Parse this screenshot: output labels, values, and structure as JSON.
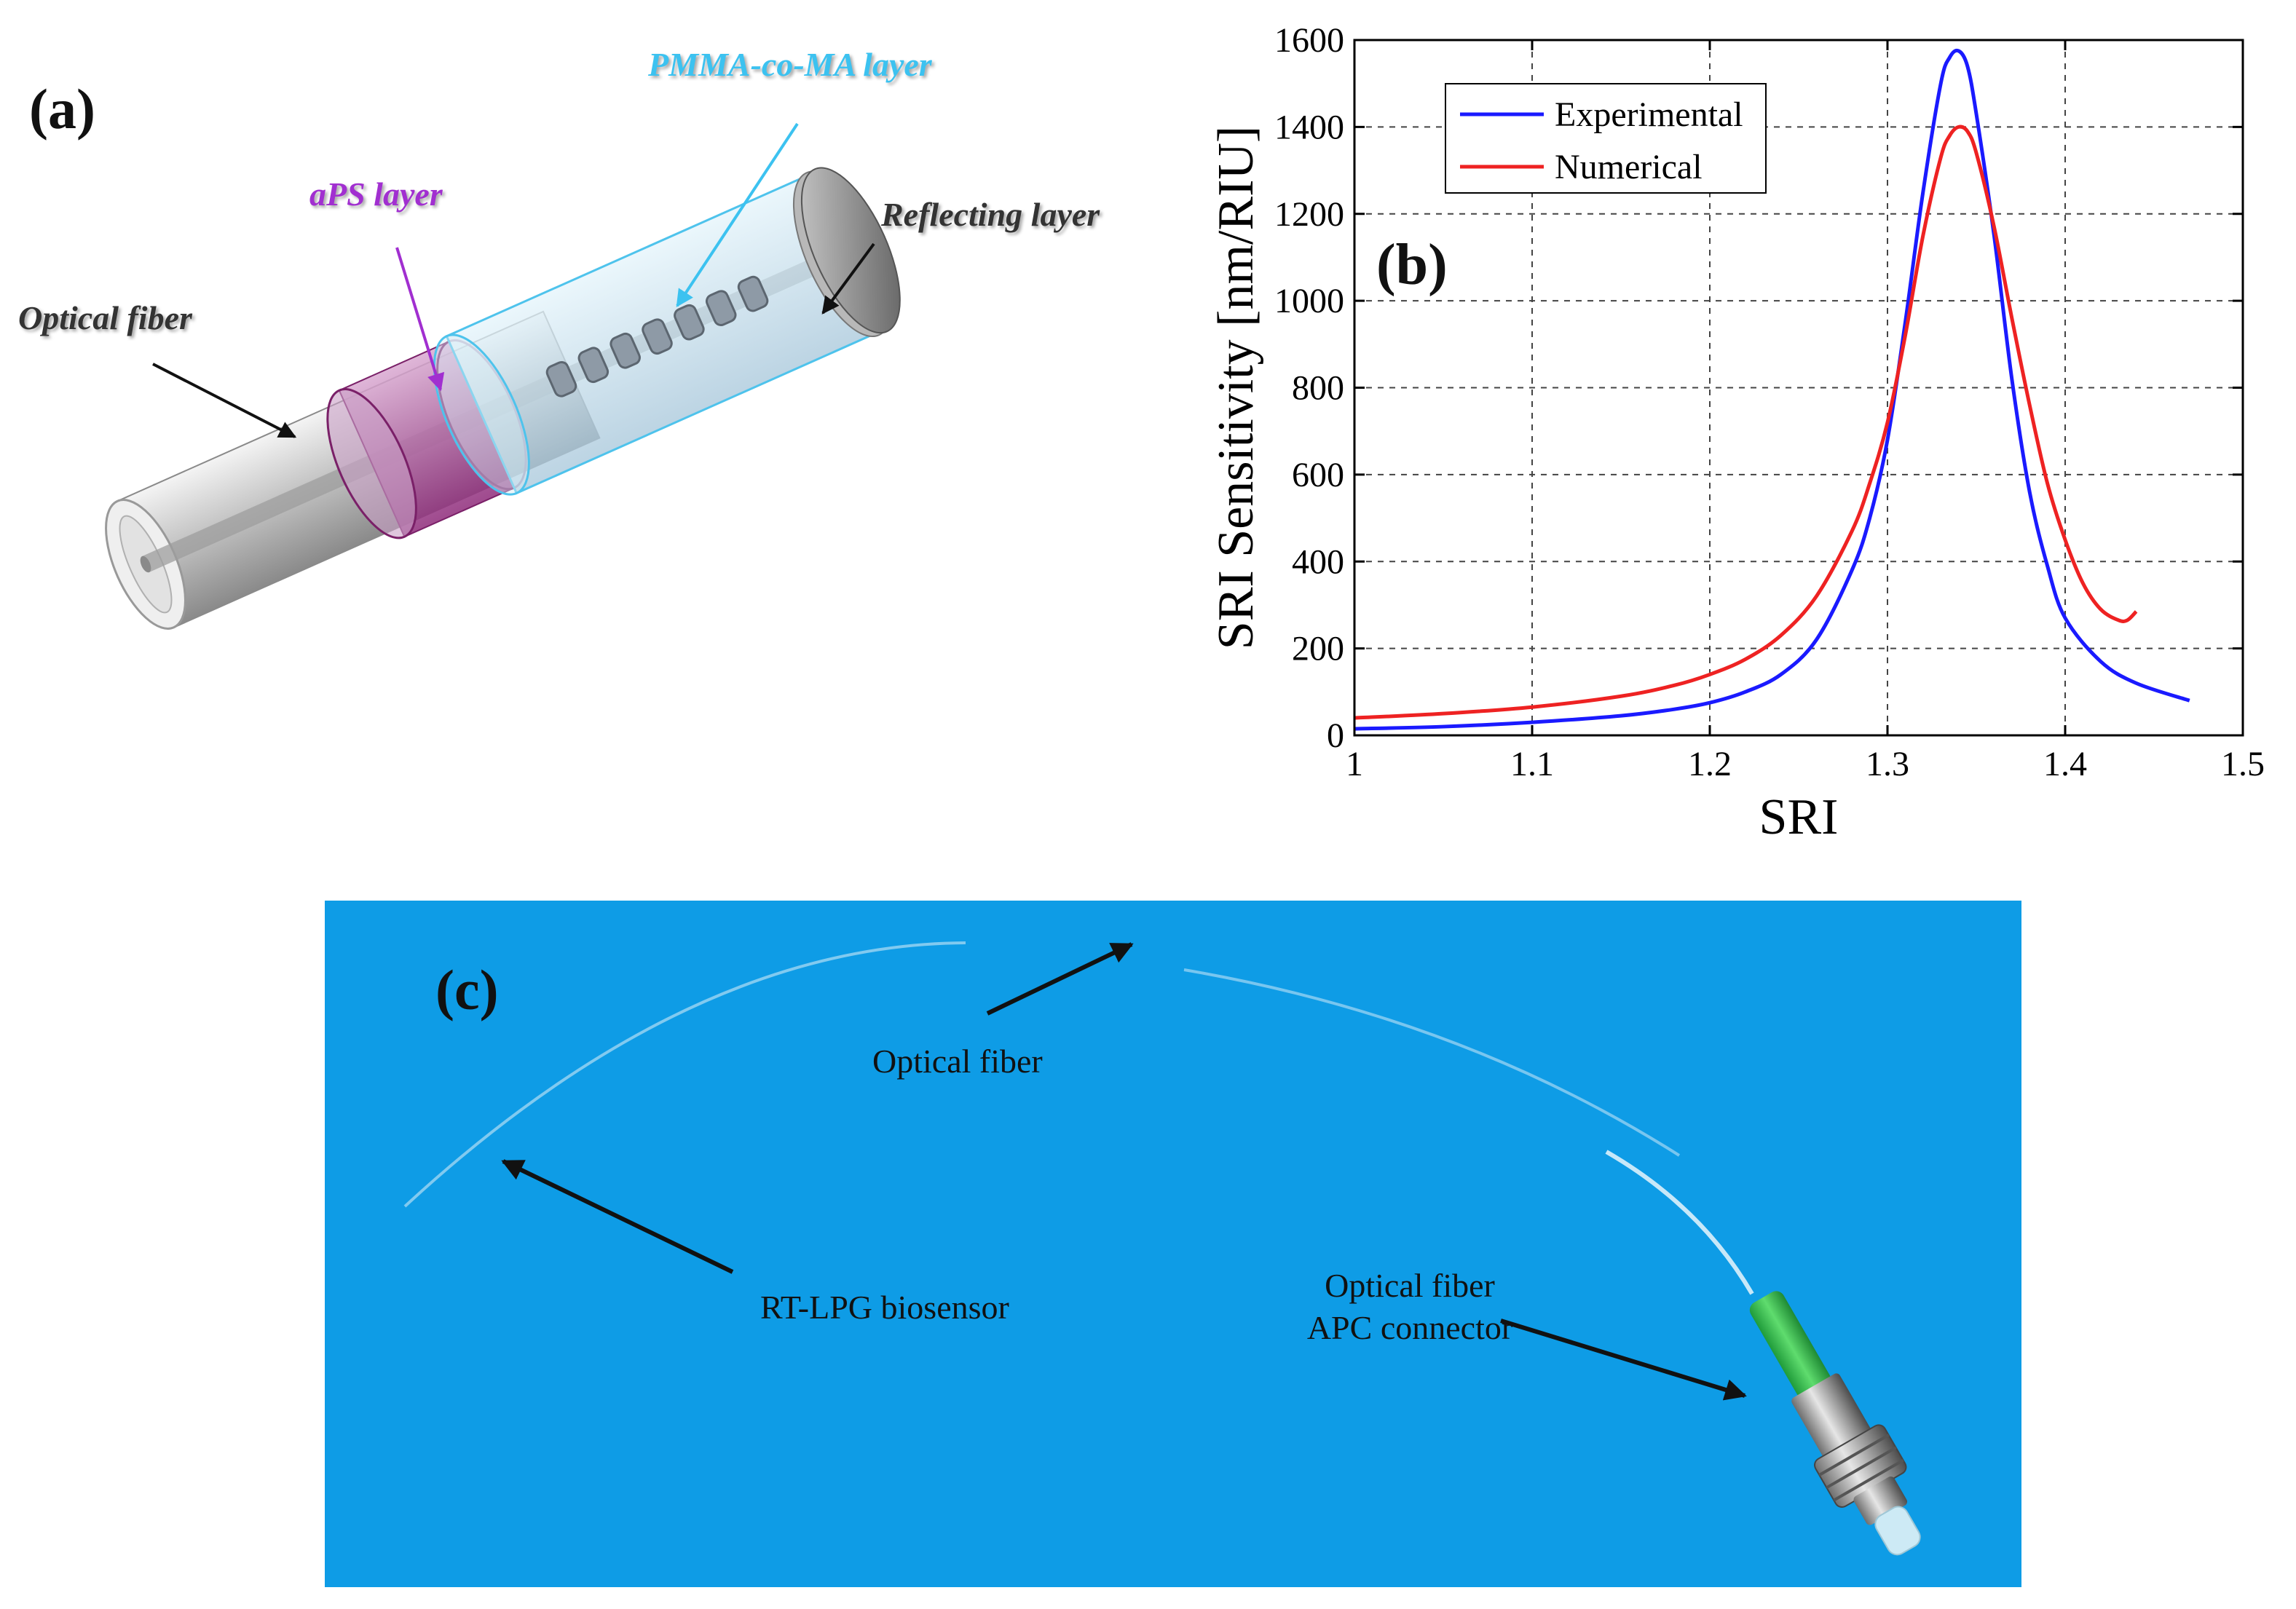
{
  "panel_a": {
    "label": "(a)",
    "labels": {
      "pmma": "PMMA-co-MA  layer",
      "aps": "aPS layer",
      "reflecting": "Reflecting  layer",
      "fiber": "Optical fiber"
    },
    "colors": {
      "pmma": "#3cc2f0",
      "aps": "#a12fd0",
      "reflecting": "#333333",
      "fiber": "#333333"
    }
  },
  "panel_b": {
    "label": "(b)"
  },
  "chart_data": {
    "type": "line",
    "xlabel": "SRI",
    "ylabel": "SRI Sensitivity [nm/RIU]",
    "xlim": [
      1,
      1.5
    ],
    "ylim": [
      0,
      1600
    ],
    "xticks": [
      "1",
      "1.1",
      "1.2",
      "1.3",
      "1.4",
      "1.5"
    ],
    "yticks": [
      "0",
      "200",
      "400",
      "600",
      "800",
      "1000",
      "1200",
      "1400",
      "1600"
    ],
    "grid": true,
    "legend_position": "top-left",
    "series": [
      {
        "name": "Experimental",
        "color": "#1a1aff",
        "x": [
          1.0,
          1.05,
          1.1,
          1.15,
          1.18,
          1.2,
          1.22,
          1.24,
          1.26,
          1.28,
          1.29,
          1.3,
          1.31,
          1.32,
          1.33,
          1.335,
          1.34,
          1.345,
          1.35,
          1.36,
          1.37,
          1.38,
          1.39,
          1.4,
          1.42,
          1.44,
          1.47
        ],
        "y": [
          15,
          20,
          30,
          45,
          60,
          75,
          100,
          140,
          220,
          380,
          500,
          680,
          950,
          1250,
          1500,
          1560,
          1575,
          1540,
          1430,
          1150,
          820,
          560,
          390,
          270,
          170,
          120,
          80
        ]
      },
      {
        "name": "Numerical",
        "color": "#ee2222",
        "x": [
          1.0,
          1.05,
          1.1,
          1.15,
          1.18,
          1.2,
          1.22,
          1.24,
          1.26,
          1.28,
          1.29,
          1.3,
          1.31,
          1.32,
          1.33,
          1.335,
          1.34,
          1.345,
          1.35,
          1.36,
          1.37,
          1.38,
          1.39,
          1.4,
          1.41,
          1.42,
          1.43,
          1.435,
          1.44
        ],
        "y": [
          40,
          50,
          65,
          90,
          115,
          140,
          175,
          230,
          320,
          470,
          580,
          720,
          920,
          1150,
          1330,
          1380,
          1400,
          1390,
          1340,
          1170,
          960,
          760,
          580,
          450,
          350,
          290,
          265,
          265,
          285
        ]
      }
    ]
  },
  "panel_c": {
    "label": "(c)",
    "labels": {
      "fiber": "Optical fiber",
      "biosensor": "RT-LPG biosensor",
      "connector_line1": "Optical fiber",
      "connector_line2": "APC connector"
    }
  }
}
